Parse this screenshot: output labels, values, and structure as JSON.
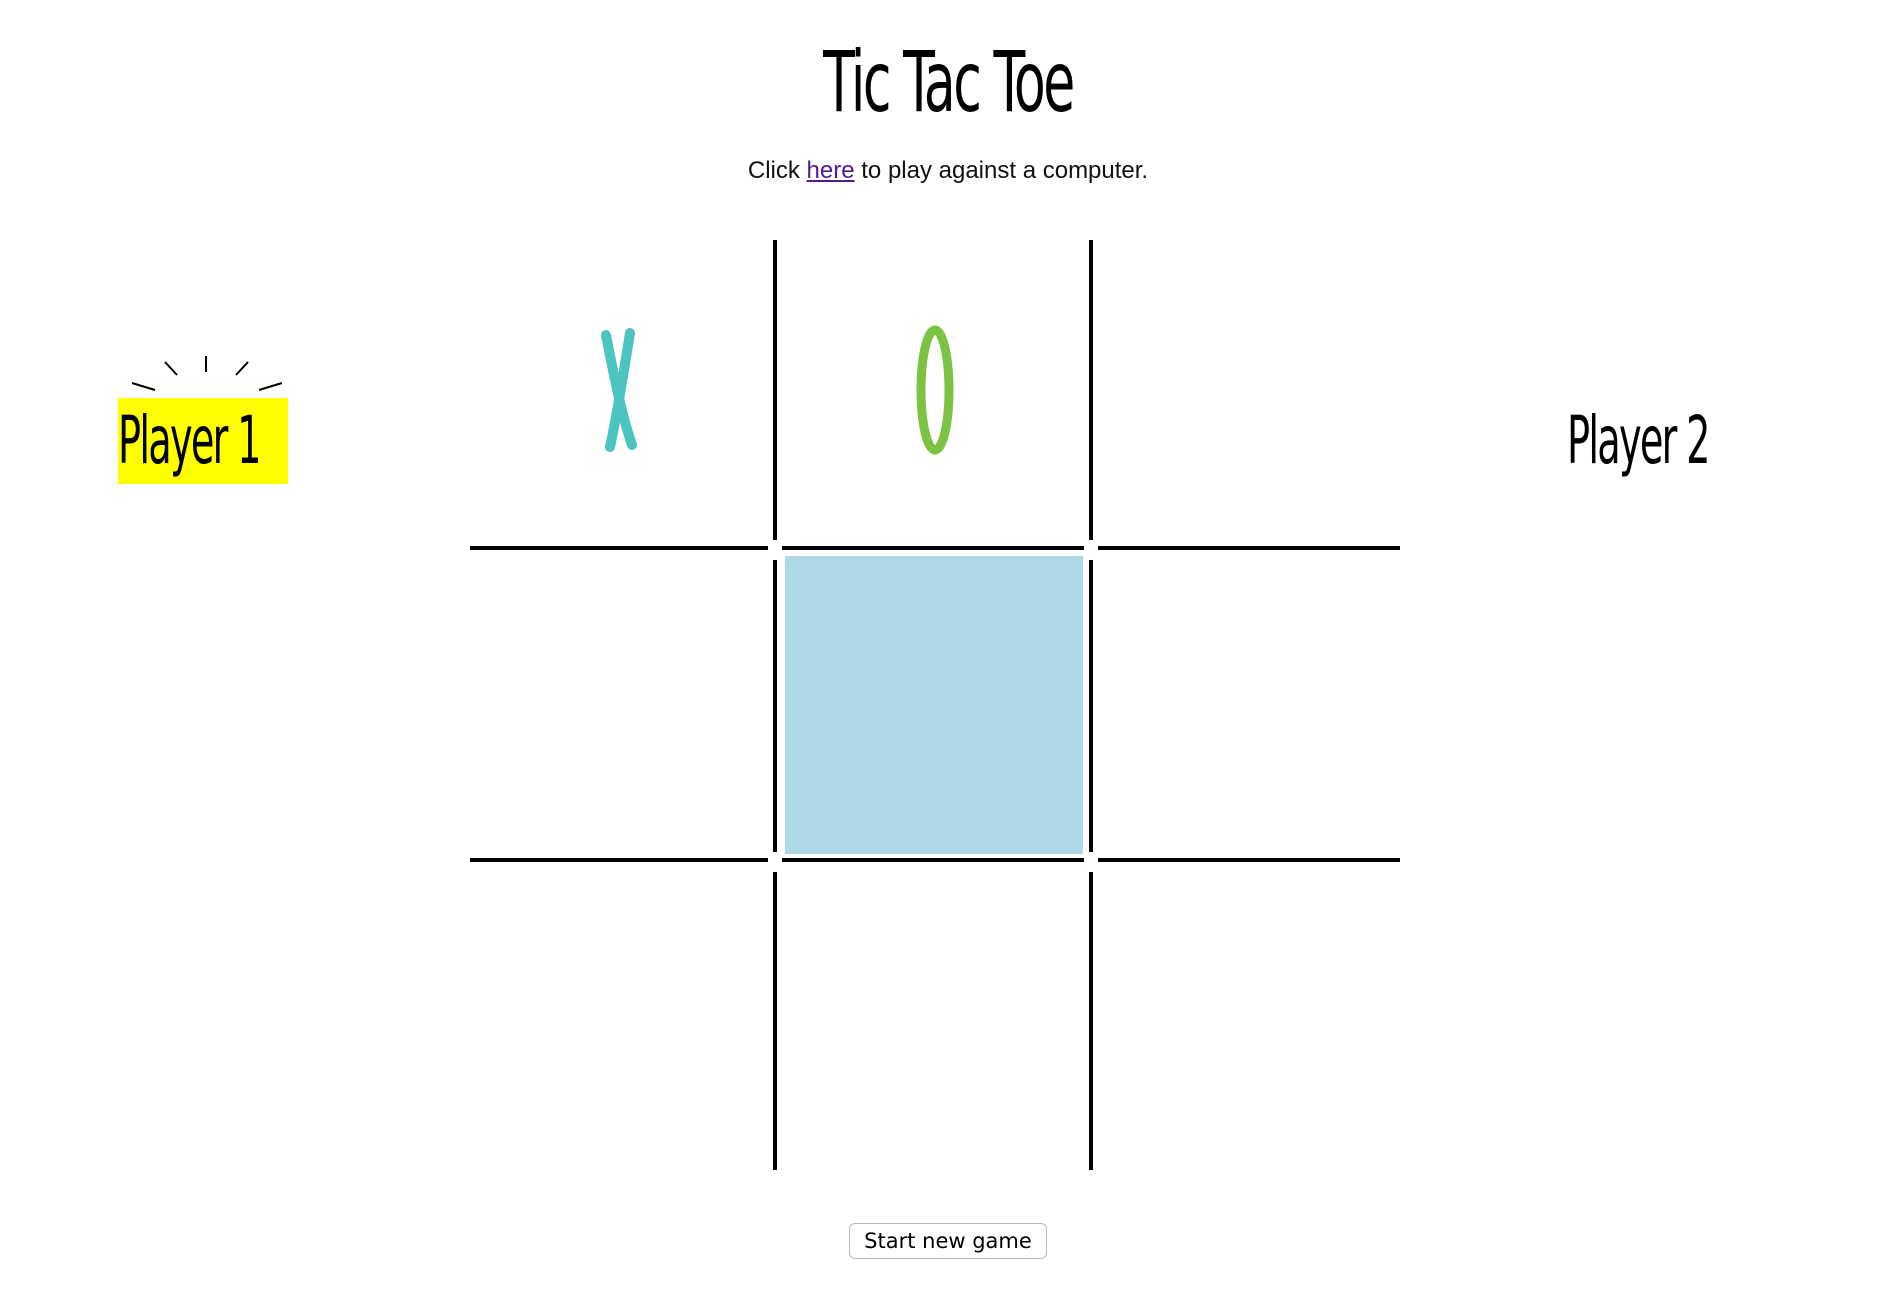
{
  "header": {
    "title": "Tic Tac Toe",
    "subtitle_before": "Click ",
    "subtitle_link": "here",
    "subtitle_after": " to play against a computer."
  },
  "players": {
    "player1": "Player 1",
    "player2": "Player 2",
    "active": "player1",
    "highlight_color": "#ffff00"
  },
  "board": {
    "cells": [
      "X",
      "O",
      "",
      "",
      "",
      "",
      "",
      "",
      ""
    ],
    "highlighted_cell": 4,
    "highlight_color": "#add8e6",
    "x_color": "#4cc4c0",
    "o_color": "#7dc242"
  },
  "controls": {
    "new_game_label": "Start new game"
  }
}
